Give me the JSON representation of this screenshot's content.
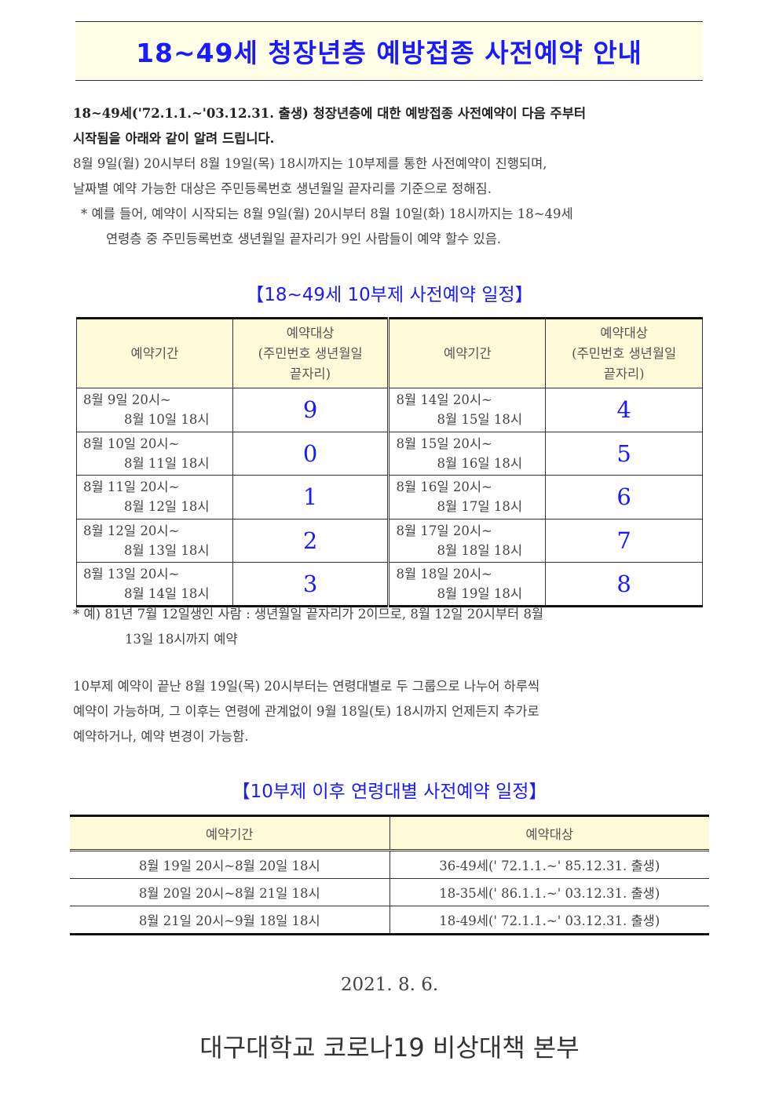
{
  "title": "18~49세 청장년층 예방접종 사전예약 안내",
  "intro": {
    "bold1": "18~49세('72.1.1.~'03.12.31. 출생) 청장년층에 대한 예방접종 사전예약이 다음 주부터",
    "bold2": "시작됨을 아래와 같이 알려 드립니다.",
    "line3": "8월 9일(월) 20시부터 8월 19일(목) 18시까지는 10부제를 통한 사전예약이 진행되며,",
    "line4": "날짜별 예약 가능한 대상은 주민등록번호 생년월일 끝자리를 기준으로 정해짐.",
    "line5": "* 예를 들어, 예약이 시작되는 8월 9일(월) 20시부터 8월 10일(화) 18시까지는 18~49세",
    "line6": "연령층 중 주민등록번호 생년월일 끝자리가 9인 사람들이 예약 할수 있음."
  },
  "schedule1": {
    "heading": "【18~49세 10부제 사전예약 일정】",
    "headers": [
      "예약기간",
      "예약대상\n(주민번호 생년월일\n끝자리)",
      "예약기간",
      "예약대상\n(주민번호 생년월일\n끝자리)"
    ],
    "rows": [
      {
        "p1a": "8월 9일 20시~",
        "p1b": "8월 10일 18시",
        "d1": "9",
        "p2a": "8월 14일 20시~",
        "p2b": "8월 15일 18시",
        "d2": "4"
      },
      {
        "p1a": "8월 10일 20시~",
        "p1b": "8월 11일 18시",
        "d1": "0",
        "p2a": "8월 15일 20시~",
        "p2b": "8월 16일 18시",
        "d2": "5"
      },
      {
        "p1a": "8월 11일 20시~",
        "p1b": "8월 12일 18시",
        "d1": "1",
        "p2a": "8월 16일 20시~",
        "p2b": "8월 17일 18시",
        "d2": "6"
      },
      {
        "p1a": "8월 12일 20시~",
        "p1b": "8월 13일 18시",
        "d1": "2",
        "p2a": "8월 17일 20시~",
        "p2b": "8월 18일 18시",
        "d2": "7"
      },
      {
        "p1a": "8월 13일 20시~",
        "p1b": "8월 14일 18시",
        "d1": "3",
        "p2a": "8월 18일 20시~",
        "p2b": "8월 19일 18시",
        "d2": "8"
      }
    ],
    "note1": "* 예) 81년 7월 12일생인 사람 : 생년월일 끝자리가 2이므로, 8월 12일 20시부터 8월",
    "note2": "13일 18시까지 예약"
  },
  "after": {
    "line1": "10부제 예약이 끝난 8월 19일(목) 20시부터는 연령대별로 두 그룹으로 나누어 하루씩",
    "line2": "예약이 가능하며, 그 이후는 연령에 관계없이 9월 18일(토) 18시까지 언제든지 추가로",
    "line3": "예약하거나, 예약 변경이 가능함."
  },
  "schedule2": {
    "heading": "【10부제 이후 연령대별 사전예약 일정】",
    "headers": [
      "예약기간",
      "예약대상"
    ],
    "rows": [
      [
        "8월 19일 20시~8월 20일 18시",
        "36-49세(' 72.1.1.~' 85.12.31. 출생)"
      ],
      [
        "8월 20일 20시~8월 21일 18시",
        "18-35세(' 86.1.1.~' 03.12.31. 출생)"
      ],
      [
        "8월 21일 20시~9월 18일 18시",
        "18-49세(' 72.1.1.~' 03.12.31. 출생)"
      ]
    ]
  },
  "date": "2021. 8. 6.",
  "org": "대구대학교 코로나19 비상대책 본부",
  "colors": {
    "accent": "#1a1aff",
    "header_bg": "#fffbd8",
    "title_bg": "#ffffe8"
  }
}
